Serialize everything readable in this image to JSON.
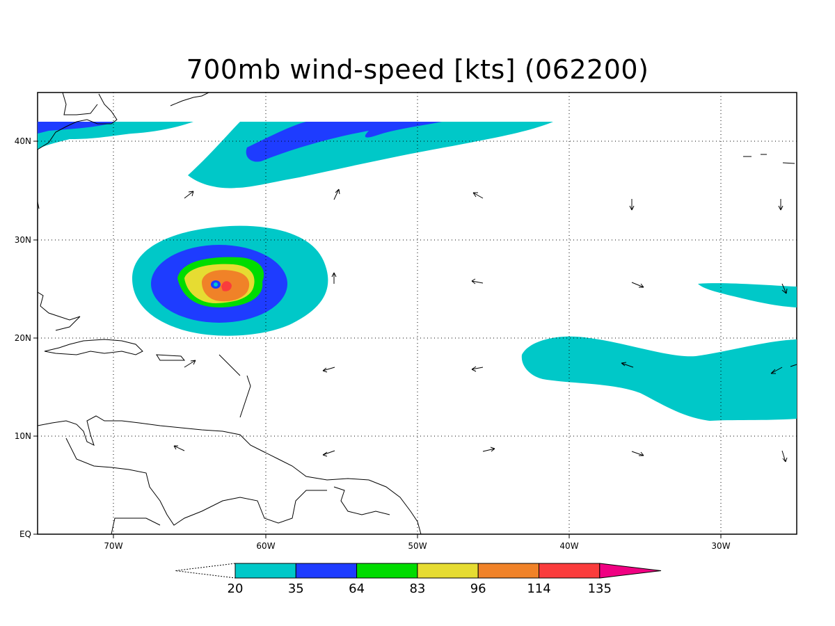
{
  "title": "700mb wind-speed [kts] (062200)",
  "map": {
    "lon_labels": [
      "70W",
      "60W",
      "50W",
      "40W",
      "30W"
    ],
    "lat_labels": [
      "40N",
      "30N",
      "20N",
      "10N",
      "EQ"
    ]
  },
  "colorbar": {
    "levels": [
      "20",
      "35",
      "64",
      "83",
      "96",
      "114",
      "135"
    ],
    "colors": [
      "#00c8c8",
      "#1e3cff",
      "#00dc00",
      "#e6dc32",
      "#f08228",
      "#fa3c3c",
      "#f00082"
    ]
  }
}
